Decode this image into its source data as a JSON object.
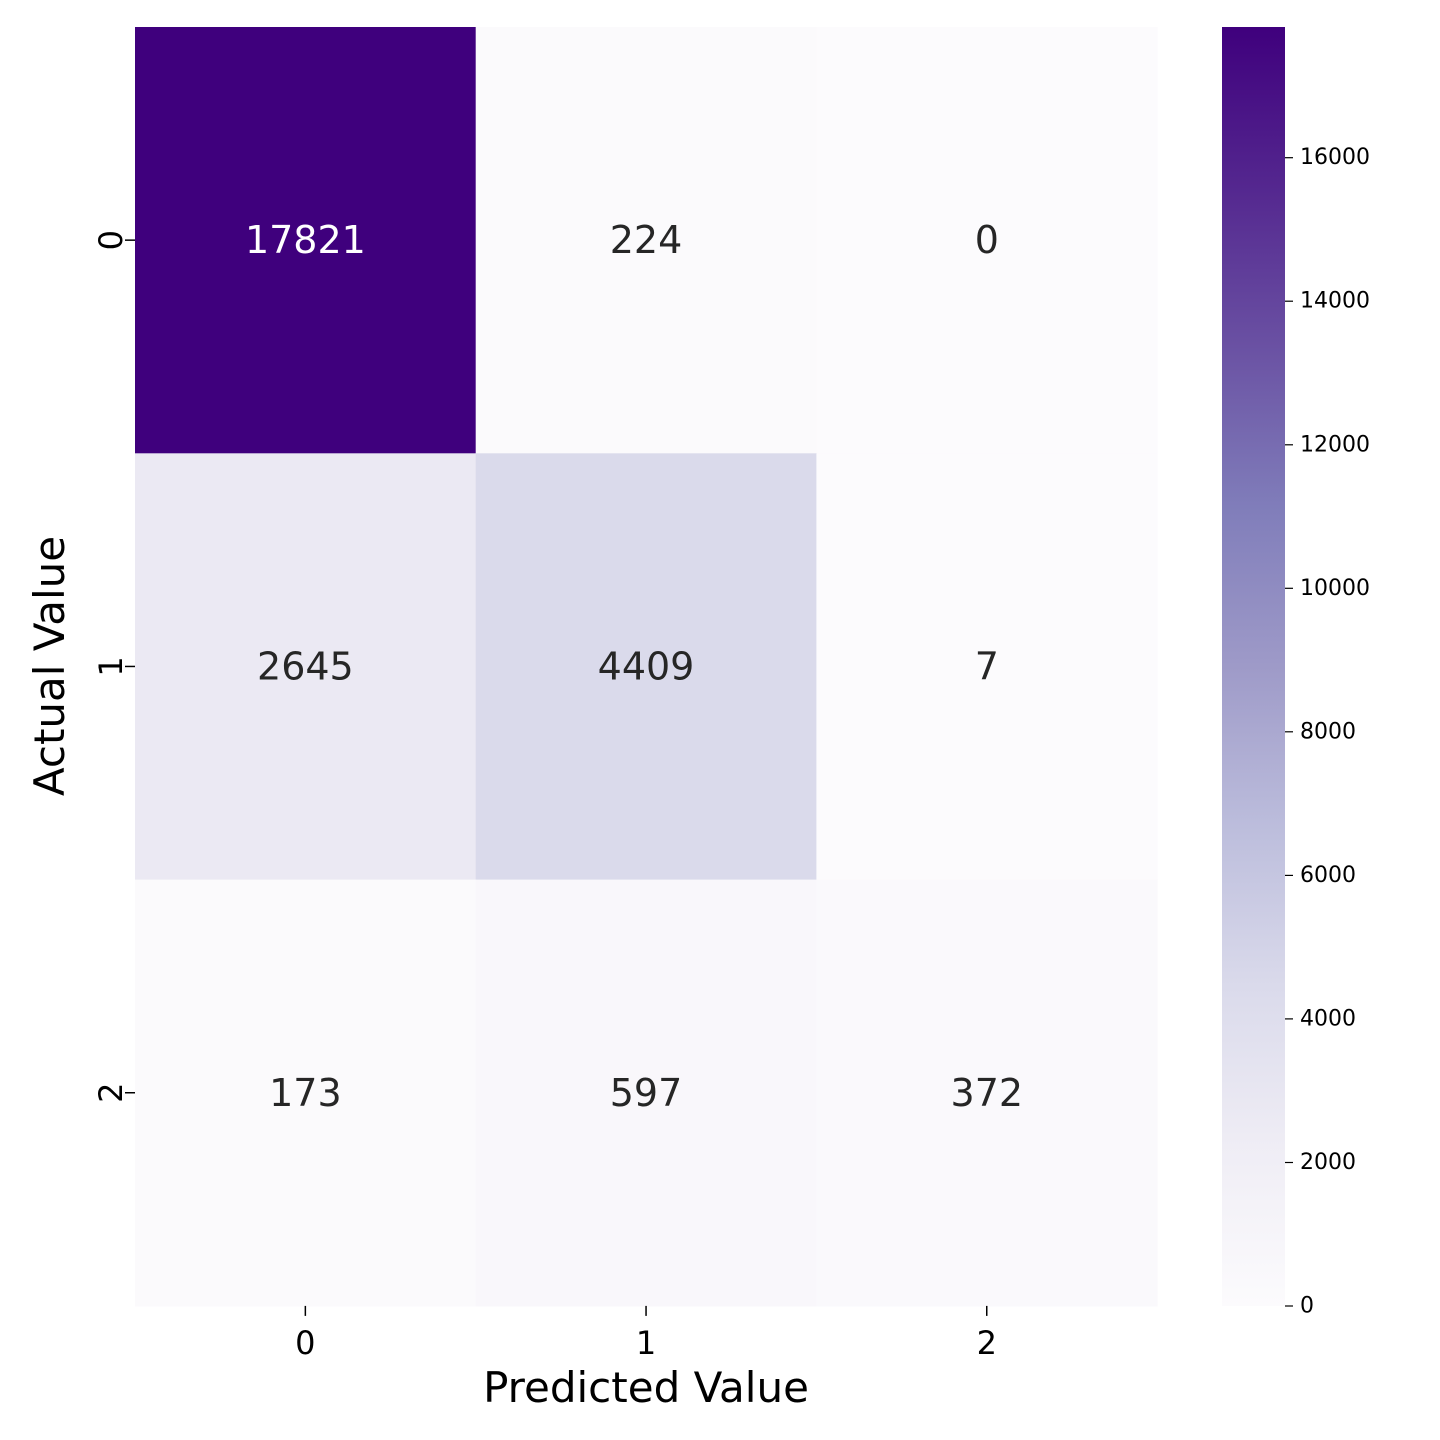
{
  "chart_data": {
    "type": "heatmap",
    "title": "",
    "xlabel": "Predicted Value",
    "ylabel": "Actual Value",
    "x_categories": [
      "0",
      "1",
      "2"
    ],
    "y_categories": [
      "0",
      "1",
      "2"
    ],
    "values": [
      [
        17821,
        224,
        0
      ],
      [
        2645,
        4409,
        7
      ],
      [
        173,
        597,
        372
      ]
    ],
    "annotations": [
      [
        "17821",
        "224",
        "0"
      ],
      [
        "2645",
        "4409",
        "7"
      ],
      [
        "173",
        "597",
        "372"
      ]
    ],
    "colormap": "Purples",
    "colorbar": {
      "range": [
        0,
        17821
      ],
      "ticks": [
        "0",
        "2000",
        "4000",
        "6000",
        "8000",
        "10000",
        "12000",
        "14000",
        "16000"
      ],
      "tick_values": [
        0,
        2000,
        4000,
        6000,
        8000,
        10000,
        12000,
        14000,
        16000
      ]
    },
    "colors": {
      "min": "#fcfbfd",
      "max": "#3f007d",
      "text_dark": "#262626",
      "text_light": "#ffffff"
    }
  }
}
